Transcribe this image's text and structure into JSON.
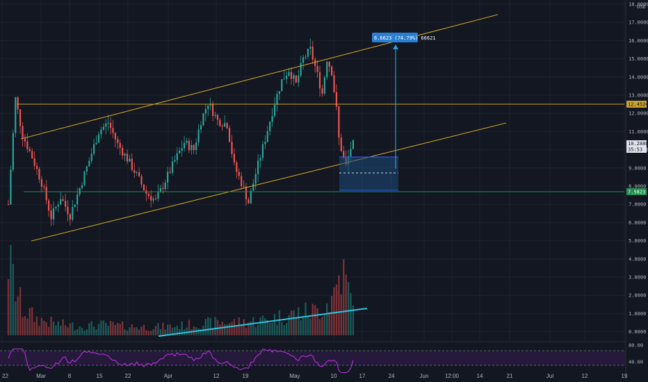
{
  "currency": "USD",
  "chart_data": {
    "type": "candlestick",
    "ylim": [
      -0.5,
      18.0
    ],
    "y_ticks": [
      {
        "value": 18.0,
        "label": "18.0000"
      },
      {
        "value": 17.0,
        "label": "17.0000"
      },
      {
        "value": 16.0,
        "label": "16.0000"
      },
      {
        "value": 15.0,
        "label": "15.0000"
      },
      {
        "value": 14.0,
        "label": "14.0000"
      },
      {
        "value": 13.0,
        "label": "13.0000"
      },
      {
        "value": 12.0,
        "label": "12.0000"
      },
      {
        "value": 11.0,
        "label": "11.0000"
      },
      {
        "value": 10.0,
        "label": "10.0000"
      },
      {
        "value": 9.0,
        "label": "9.0000"
      },
      {
        "value": 8.0,
        "label": "8.0000"
      },
      {
        "value": 7.0,
        "label": "7.0000"
      },
      {
        "value": 6.0,
        "label": "6.0000"
      },
      {
        "value": 5.0,
        "label": "5.0000"
      },
      {
        "value": 4.0,
        "label": "4.0000"
      },
      {
        "value": 3.0,
        "label": "3.0000"
      },
      {
        "value": 2.0,
        "label": "2.0000"
      },
      {
        "value": 1.0,
        "label": "1.0000"
      },
      {
        "value": 0.0,
        "label": "0.0000"
      }
    ],
    "x_ticks": [
      "22",
      "Mar",
      "8",
      "15",
      "22",
      "Apr",
      "12",
      "19",
      "May",
      "10",
      "17",
      "24",
      "Jun",
      "12:00",
      "14",
      "21",
      "Jul",
      "12",
      "19"
    ],
    "price_markers": [
      {
        "label": "12.4524",
        "value": 12.4524,
        "color": "#c9a227"
      },
      {
        "label": "10.2880",
        "sublabel": "35:53",
        "value": 10.288,
        "color": "#e0e3eb"
      },
      {
        "label": "7.5823",
        "value": 7.5823,
        "color": "#1e8f4e"
      }
    ],
    "measure_label": "6.6623 (74.79%) 66621",
    "rsi": {
      "ticks": [
        "80.00",
        "40.00"
      ]
    },
    "candle_anchors": [
      [
        0,
        7.0
      ],
      [
        3,
        12.8
      ],
      [
        6,
        10.8
      ],
      [
        10,
        9.6
      ],
      [
        14,
        8.2
      ],
      [
        18,
        6.3
      ],
      [
        22,
        7.4
      ],
      [
        26,
        6.4
      ],
      [
        30,
        7.9
      ],
      [
        34,
        9.4
      ],
      [
        38,
        11.0
      ],
      [
        42,
        11.5
      ],
      [
        46,
        10.3
      ],
      [
        50,
        9.5
      ],
      [
        54,
        8.6
      ],
      [
        58,
        7.6
      ],
      [
        62,
        7.2
      ],
      [
        66,
        8.3
      ],
      [
        70,
        9.4
      ],
      [
        74,
        10.4
      ],
      [
        78,
        10.0
      ],
      [
        81,
        11.6
      ],
      [
        84,
        12.6
      ],
      [
        88,
        11.6
      ],
      [
        92,
        11.4
      ],
      [
        95,
        9.1
      ],
      [
        98,
        8.2
      ],
      [
        101,
        7.1
      ],
      [
        104,
        8.7
      ],
      [
        108,
        10.6
      ],
      [
        112,
        12.6
      ],
      [
        115,
        13.8
      ],
      [
        118,
        14.4
      ],
      [
        121,
        13.6
      ],
      [
        124,
        15.0
      ],
      [
        127,
        15.5
      ],
      [
        130,
        14.1
      ],
      [
        132,
        13.1
      ],
      [
        134,
        15.0
      ],
      [
        136,
        14.3
      ],
      [
        138,
        12.2
      ],
      [
        139,
        10.6
      ],
      [
        141,
        9.5
      ],
      [
        142,
        9.1
      ],
      [
        144,
        10.1
      ],
      [
        145,
        10.3
      ]
    ],
    "volume_anchors": [
      [
        0,
        4.6
      ],
      [
        3,
        2.8
      ],
      [
        6,
        1.6
      ],
      [
        12,
        1.0
      ],
      [
        20,
        0.7
      ],
      [
        30,
        0.55
      ],
      [
        40,
        0.65
      ],
      [
        50,
        0.55
      ],
      [
        60,
        0.5
      ],
      [
        70,
        0.55
      ],
      [
        80,
        0.7
      ],
      [
        90,
        0.8
      ],
      [
        100,
        0.8
      ],
      [
        110,
        1.0
      ],
      [
        120,
        1.3
      ],
      [
        130,
        1.5
      ],
      [
        136,
        2.2
      ],
      [
        140,
        4.0
      ],
      [
        142,
        3.2
      ],
      [
        145,
        1.6
      ]
    ]
  }
}
